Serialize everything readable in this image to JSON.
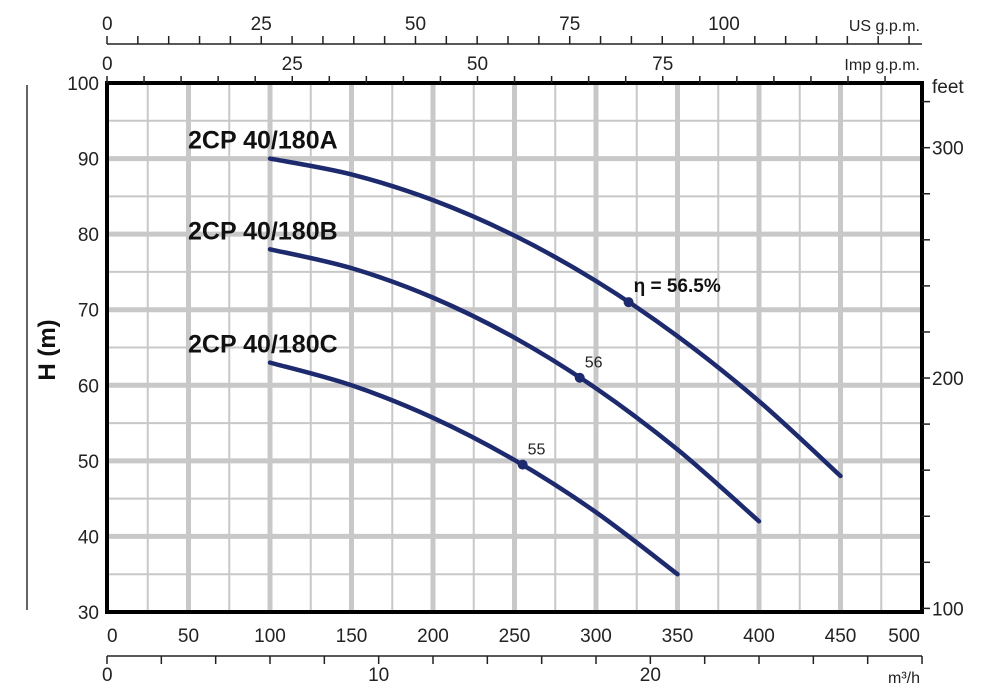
{
  "chart_data": {
    "type": "line",
    "ylabel": "H (m)",
    "xlim": [
      0,
      500
    ],
    "ylim": [
      30,
      100
    ],
    "grid": true,
    "x_ticks": [
      0,
      50,
      100,
      150,
      200,
      250,
      300,
      350,
      400,
      450,
      500
    ],
    "y_ticks": [
      30,
      40,
      50,
      60,
      70,
      80,
      90,
      100
    ],
    "secondary_axes": {
      "us_gpm": {
        "label": "US g.p.m.",
        "ticks": [
          0,
          25,
          50,
          75,
          100
        ]
      },
      "imp_gpm": {
        "label": "Imp g.p.m.",
        "ticks": [
          0,
          25,
          50,
          75
        ]
      },
      "m3h": {
        "label": "m³/h",
        "ticks": [
          0,
          10,
          20
        ]
      },
      "feet": {
        "label": "feet",
        "ticks": [
          100,
          200,
          300
        ]
      }
    },
    "line_color": "#1e2a6e",
    "series": [
      {
        "name": "2CP 40/180A",
        "points": [
          [
            100,
            90
          ],
          [
            150,
            87.9
          ],
          [
            200,
            84.5
          ],
          [
            250,
            79.8
          ],
          [
            300,
            73.8
          ],
          [
            350,
            66.5
          ],
          [
            400,
            57.9
          ],
          [
            450,
            48
          ]
        ],
        "efficiency_point": {
          "x": 320,
          "y": 71,
          "label": "η = 56.5%"
        }
      },
      {
        "name": "2CP 40/180B",
        "points": [
          [
            100,
            78
          ],
          [
            150,
            75.5
          ],
          [
            200,
            71.6
          ],
          [
            250,
            66.3
          ],
          [
            300,
            59.6
          ],
          [
            350,
            51.5
          ],
          [
            400,
            42
          ]
        ],
        "efficiency_point": {
          "x": 290,
          "y": 61,
          "label": "56"
        }
      },
      {
        "name": "2CP 40/180C",
        "points": [
          [
            100,
            63
          ],
          [
            150,
            60
          ],
          [
            200,
            55.7
          ],
          [
            250,
            50.1
          ],
          [
            300,
            43.2
          ],
          [
            350,
            35
          ]
        ],
        "efficiency_point": {
          "x": 255,
          "y": 49.5,
          "label": "55"
        }
      }
    ]
  }
}
